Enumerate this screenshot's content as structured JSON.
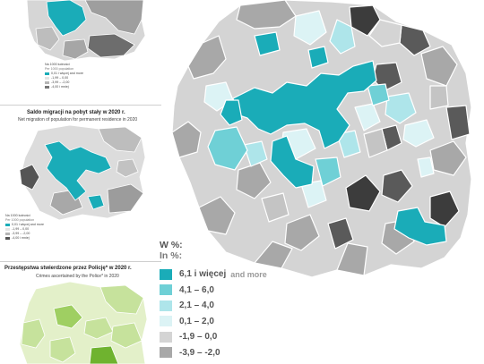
{
  "main_map": {
    "legend": {
      "title_pl": "W %:",
      "title_en": "In %:",
      "items": [
        {
          "label": "6,1 i więcej",
          "note": "and more",
          "color": "#1aacb8"
        },
        {
          "label": "4,1 –   6,0",
          "note": "",
          "color": "#6fd0d6"
        },
        {
          "label": "2,1 –   4,0",
          "note": "",
          "color": "#aee5ea"
        },
        {
          "label": "0,1 –   2,0",
          "note": "",
          "color": "#dcf3f5"
        },
        {
          "label": "-1,9 –   0,0",
          "note": "",
          "color": "#d4d4d4"
        },
        {
          "label": "-3,9 – -2,0",
          "note": "",
          "color": "#a8a8a8"
        }
      ]
    }
  },
  "panel_top": {
    "legend_title_pl": "Na 1000 ludności",
    "legend_title_en": "Per 1000 population",
    "items": [
      {
        "label": "0,01 i więcej  and more",
        "color": "#1aacb8"
      },
      {
        "label": "-1,99 – 0,00",
        "color": "#e4e4e4"
      },
      {
        "label": "-3,99 – -2,00",
        "color": "#b5b5b5"
      },
      {
        "label": "-4,00 i mniej",
        "color": "#777777"
      }
    ]
  },
  "panel_middle": {
    "title_pl": "Saldo migracji na pobyt stały w 2020 r.",
    "title_en": "Net migration of population for permanent residence in 2020",
    "legend_title_pl": "Na 1000 ludności",
    "legend_title_en": "Per 1000 population",
    "items": [
      {
        "label": "0,01 i więcej  and more",
        "color": "#1aacb8"
      },
      {
        "label": "-1,99 – 0,00",
        "color": "#e4e4e4"
      },
      {
        "label": "-3,99 – -2,00",
        "color": "#b5b5b5"
      },
      {
        "label": "-4,00 i mniej",
        "color": "#555555"
      }
    ]
  },
  "panel_bottom": {
    "title_pl": "Przestępstwa stwierdzone przez Policję* w 2020 r.",
    "title_en": "Crimes ascertained by the Police* in 2020"
  },
  "colors": {
    "teal": "#1aacb8",
    "teal_mid": "#6fd0d6",
    "teal_light": "#aee5ea",
    "teal_pale": "#dcf3f5",
    "grey_light": "#d4d4d4",
    "grey_mid": "#a8a8a8",
    "grey_dark": "#5a5a5a",
    "grey_darkest": "#3c3c3c",
    "green_pale": "#e3f0c9",
    "green_light": "#c6e29c",
    "green_mid": "#9fcf62",
    "green_dark": "#6fb32f"
  }
}
